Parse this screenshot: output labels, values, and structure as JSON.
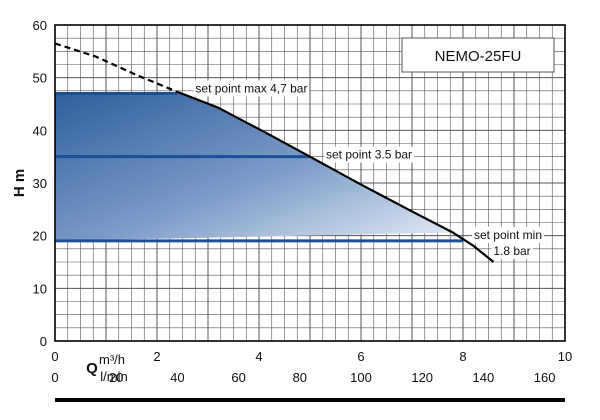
{
  "chart_data": {
    "type": "line",
    "title": "",
    "legend_box": "NEMO-25FU",
    "ylabel": "H m",
    "xlabel_primary": "m³/h",
    "xlabel_secondary": "l/min",
    "x_unit_letter": "Q",
    "xlim": [
      0,
      10
    ],
    "ylim": [
      0,
      60
    ],
    "xticks_primary": [
      "0",
      "2",
      "4",
      "6",
      "8",
      "10"
    ],
    "xticks_secondary": [
      "0",
      "20",
      "40",
      "60",
      "80",
      "100",
      "120",
      "140",
      "160"
    ],
    "yticks": [
      "0",
      "10",
      "20",
      "30",
      "40",
      "50",
      "60"
    ],
    "grid": true,
    "series": [
      {
        "style": "dashed",
        "points": [
          [
            0,
            56.5
          ],
          [
            0.8,
            54
          ],
          [
            1.6,
            50.5
          ],
          [
            2.4,
            47.3
          ]
        ]
      },
      {
        "style": "solid",
        "points": [
          [
            2.4,
            47.3
          ],
          [
            3.2,
            44.3
          ],
          [
            4.2,
            39.2
          ],
          [
            5.0,
            35
          ],
          [
            6.0,
            29.7
          ],
          [
            7.0,
            24.6
          ],
          [
            7.8,
            20.6
          ],
          [
            8.2,
            18.1
          ],
          [
            8.6,
            15
          ]
        ]
      }
    ],
    "set_points": [
      {
        "label": "set point max 4,7 bar",
        "h": 47,
        "q_end": 2.4
      },
      {
        "label": "set point 3.5 bar",
        "h": 35,
        "q_end": 5.0
      },
      {
        "label": "set point min 1.8 bar",
        "label_line1": "set point min",
        "label_line2": "1.8 bar",
        "h": 19,
        "q_end": 8.0
      }
    ]
  }
}
